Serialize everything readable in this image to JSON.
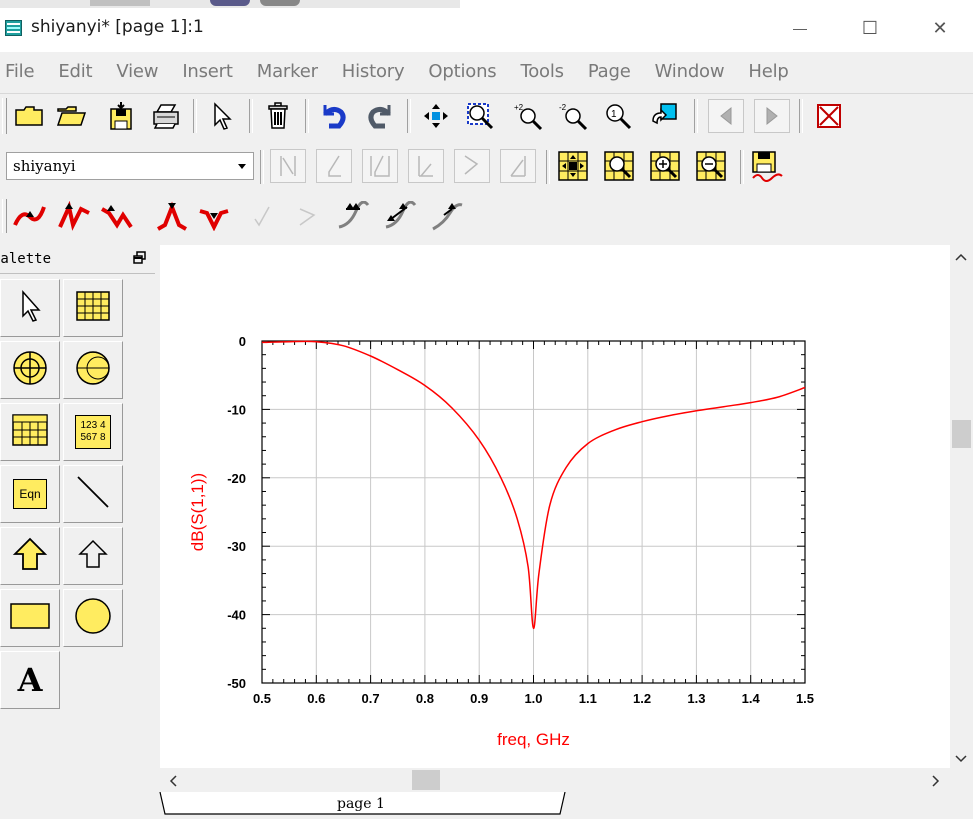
{
  "window": {
    "title": "shiyanyi* [page 1]:1",
    "minimize_glyph": "—",
    "maximize_glyph": "☐",
    "close_glyph": "✕"
  },
  "menu": [
    {
      "label": "File"
    },
    {
      "label": "Edit"
    },
    {
      "label": "View"
    },
    {
      "label": "Insert"
    },
    {
      "label": "Marker"
    },
    {
      "label": "History"
    },
    {
      "label": "Options"
    },
    {
      "label": "Tools"
    },
    {
      "label": "Page"
    },
    {
      "label": "Window"
    },
    {
      "label": "Help"
    }
  ],
  "toolbar_main": [
    {
      "icon": "new-folder-icon"
    },
    {
      "icon": "open-folder-icon"
    },
    {
      "icon": "save-icon"
    },
    {
      "icon": "print-icon"
    },
    {
      "icon": "select-arrow-icon"
    },
    {
      "icon": "delete-icon"
    },
    {
      "icon": "undo-icon"
    },
    {
      "icon": "redo-icon"
    },
    {
      "icon": "move-icon"
    },
    {
      "icon": "zoom-box-icon"
    },
    {
      "icon": "zoom-in-2x-icon"
    },
    {
      "icon": "zoom-out-2x-icon"
    },
    {
      "icon": "zoom-1x-icon"
    },
    {
      "icon": "insert-page-icon"
    },
    {
      "icon": "prev-page-icon"
    },
    {
      "icon": "next-page-icon"
    },
    {
      "icon": "stop-icon"
    }
  ],
  "page_select": {
    "value": "shiyanyi"
  },
  "palette": {
    "title": "Palette",
    "items": [
      {
        "icon": "pointer-icon"
      },
      {
        "icon": "rectangular-plot-icon"
      },
      {
        "icon": "polar-plot-icon"
      },
      {
        "icon": "smith-chart-icon"
      },
      {
        "icon": "list-table-icon"
      },
      {
        "icon": "stacked-table-icon",
        "text": [
          "123 4",
          "567 8"
        ]
      },
      {
        "icon": "equation-icon",
        "text": "Eqn"
      },
      {
        "icon": "line-icon"
      },
      {
        "icon": "polyline-icon"
      },
      {
        "icon": "polygon-icon"
      },
      {
        "icon": "rectangle-icon"
      },
      {
        "icon": "circle-icon"
      },
      {
        "icon": "text-icon",
        "text": "A"
      }
    ]
  },
  "page_tab": {
    "label": "page 1"
  },
  "colors": {
    "trace": "#ff0000",
    "axis_label": "#ff0000",
    "grid": "#c8c8c8"
  },
  "chart_data": {
    "type": "line",
    "title": "",
    "xlabel": "freq, GHz",
    "ylabel": "dB(S(1,1))",
    "xlim": [
      0.5,
      1.5
    ],
    "ylim": [
      -50,
      0
    ],
    "x_ticks": [
      0.5,
      0.6,
      0.7,
      0.8,
      0.9,
      1.0,
      1.1,
      1.2,
      1.3,
      1.4,
      1.5
    ],
    "x_tick_labels": [
      "0.5",
      "0.6",
      "0.7",
      "0.8",
      "0.9",
      "1.0",
      "1.1",
      "1.2",
      "1.3",
      "1.4",
      "1.5"
    ],
    "y_ticks": [
      0,
      -10,
      -20,
      -30,
      -40,
      -50
    ],
    "y_tick_labels": [
      "0",
      "-10",
      "-20",
      "-30",
      "-40",
      "-50"
    ],
    "grid": true,
    "series": [
      {
        "x": [
          0.5,
          0.55,
          0.6,
          0.65,
          0.7,
          0.75,
          0.8,
          0.85,
          0.9,
          0.94,
          0.97,
          0.99,
          1.0,
          1.01,
          1.03,
          1.06,
          1.1,
          1.15,
          1.2,
          1.25,
          1.3,
          1.35,
          1.4,
          1.45,
          1.5
        ],
        "y": [
          -0.2,
          -0.1,
          -0.1,
          -0.7,
          -2.2,
          -4.2,
          -6.5,
          -9.8,
          -14.5,
          -20.0,
          -26.0,
          -33.0,
          -42.0,
          -34.0,
          -24.0,
          -18.5,
          -15.0,
          -13.0,
          -11.8,
          -10.9,
          -10.2,
          -9.6,
          -9.0,
          -8.2,
          -6.8
        ]
      }
    ]
  }
}
